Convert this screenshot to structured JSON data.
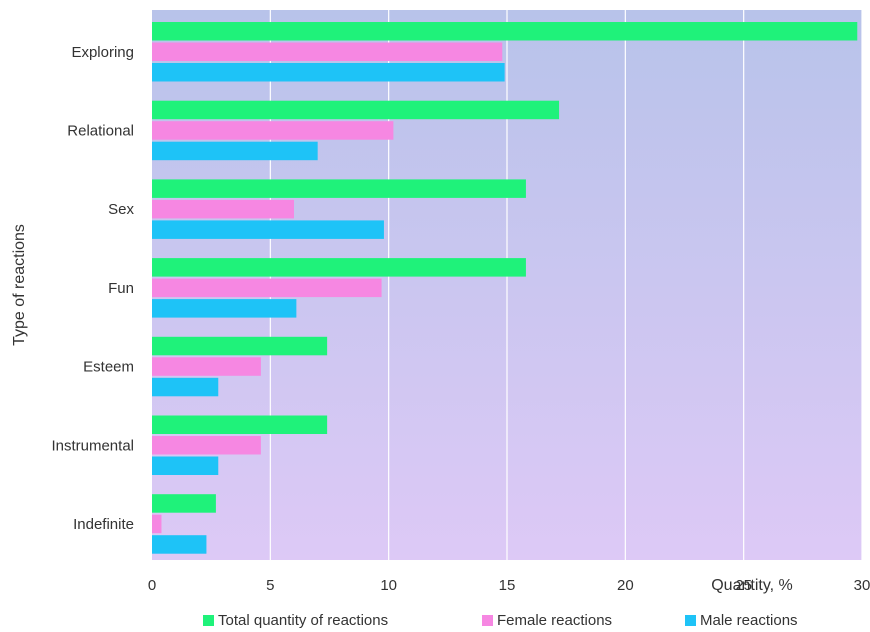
{
  "chart_data": {
    "type": "bar",
    "orientation": "horizontal",
    "categories": [
      "Exploring",
      "Relational",
      "Sex",
      "Fun",
      "Esteem",
      "Instrumental",
      "Indefinite"
    ],
    "series": [
      {
        "name": "Total quantity of reactions",
        "color": "#1ff27a",
        "values": [
          29.8,
          17.2,
          15.8,
          15.8,
          7.4,
          7.4,
          2.7
        ]
      },
      {
        "name": "Female reactions",
        "color": "#f687e2",
        "values": [
          14.8,
          10.2,
          6.0,
          9.7,
          4.6,
          4.6,
          0.4
        ]
      },
      {
        "name": "Male reactions",
        "color": "#1ec3f7",
        "values": [
          14.9,
          7.0,
          9.8,
          6.1,
          2.8,
          2.8,
          2.3
        ]
      }
    ],
    "xlabel": "Quantity, %",
    "ylabel": "Type of reactions",
    "xlim": [
      0,
      30
    ],
    "xticks": [
      "0",
      "5",
      "10",
      "15",
      "20",
      "25",
      "30"
    ],
    "grid": "vertical",
    "legend_position": "bottom",
    "background_gradient": [
      "#b8c3ea",
      "#ddc9f6"
    ]
  }
}
